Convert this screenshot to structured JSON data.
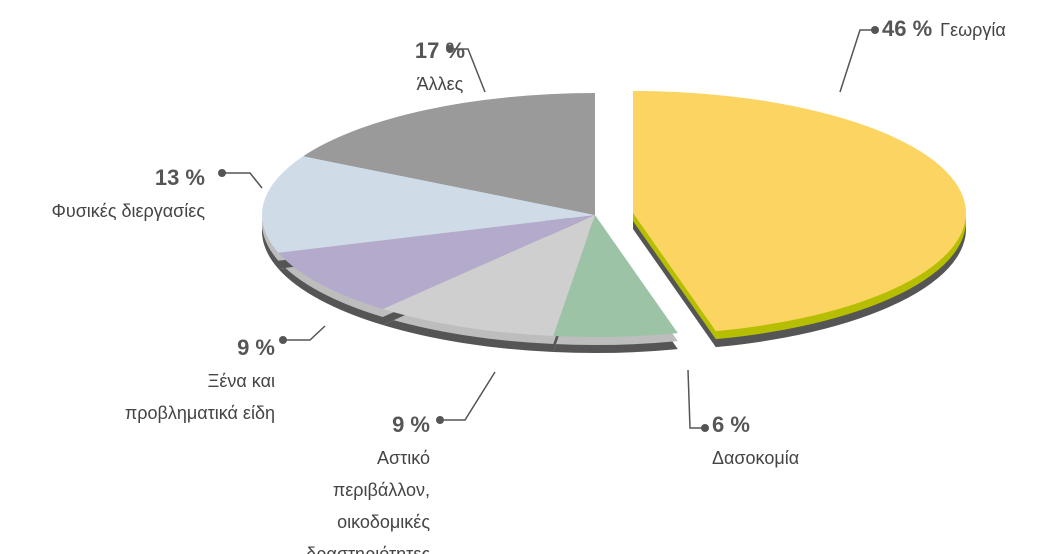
{
  "chart_data": {
    "type": "pie",
    "categories": [
      "Γεωργία",
      "Δασοκομία",
      "Αστικό\nπεριβάλλον,\nοικοδομικές\nδραστηριότητες",
      "Ξένα και\nπροβληματικά είδη",
      "Φυσικές διεργασίες",
      "Άλλες"
    ],
    "values": [
      46,
      6,
      9,
      9,
      13,
      17
    ],
    "value_labels": [
      "46 %",
      "6 %",
      "9 %",
      "9 %",
      "13 %",
      "17 %"
    ],
    "colors": [
      "#fcd462",
      "#9dc3a6",
      "#cfcfcf",
      "#b4aacb",
      "#cfdbe6",
      "#9a9a9a"
    ]
  }
}
